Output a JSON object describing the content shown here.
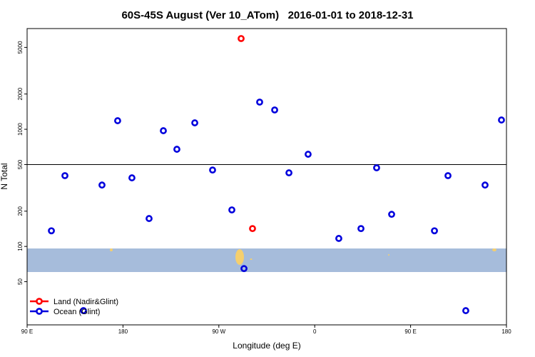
{
  "chart_data": {
    "type": "scatter",
    "title": "60S-45S August (Ver 10_ATom)   2016-01-01 to 2018-12-31",
    "x_label": "Longitude (deg E)",
    "y_label": "N Total",
    "log_y": true,
    "xlim": [
      90,
      540
    ],
    "ylim": [
      21.4,
      7240
    ],
    "xticks": [
      {
        "value": 90,
        "label": "90 E"
      },
      {
        "value": 180,
        "label": "180"
      },
      {
        "value": 270,
        "label": "90 W"
      },
      {
        "value": 360,
        "label": "0"
      },
      {
        "value": 450,
        "label": "90 E"
      },
      {
        "value": 540,
        "label": "180"
      }
    ],
    "yticks": [
      50,
      100,
      200,
      500,
      1000,
      2000,
      5000
    ],
    "hline": 500,
    "legend": "bottom-left",
    "series": [
      {
        "name": "Land (Nadir&Glint)",
        "color": "#ff0000",
        "x": [
          290.9,
          301.6
        ],
        "values": [
          5950,
          142
        ]
      },
      {
        "name": "Ocean (Glint)",
        "color": "#0000dd",
        "x": [
          112.8,
          125.5,
          142.9,
          160.3,
          175.0,
          188.4,
          204.5,
          217.9,
          230.6,
          247.4,
          264.1,
          282.2,
          293.6,
          308.3,
          322.4,
          335.8,
          353.8,
          382.6,
          403.4,
          418.1,
          432.2,
          472.4,
          485.1,
          501.8,
          519.9,
          535.3
        ],
        "values": [
          136,
          402,
          28.3,
          334,
          1183,
          385,
          173,
          972,
          675,
          1135,
          449,
          205,
          64.7,
          1706,
          1462,
          425,
          612,
          117,
          142,
          469,
          188,
          136,
          402,
          28.3,
          334,
          1200
        ]
      }
    ]
  }
}
